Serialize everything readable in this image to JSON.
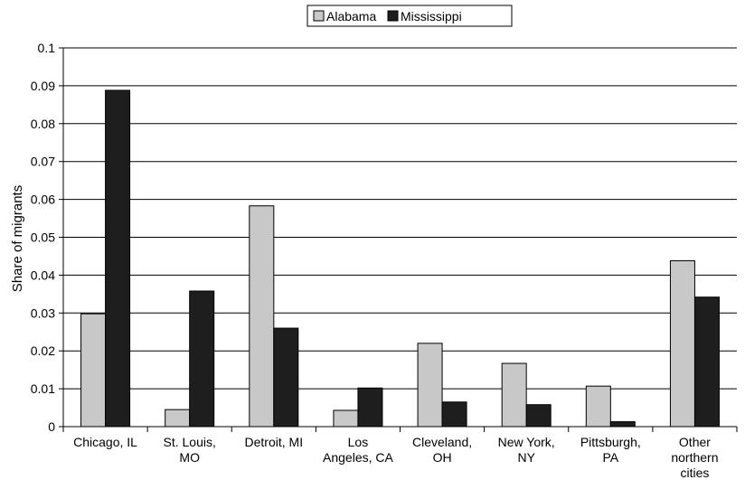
{
  "chart_data": {
    "type": "bar",
    "title": "",
    "xlabel": "",
    "ylabel": "Share of migrants",
    "ylim": [
      0,
      0.1
    ],
    "yticks": [
      "0",
      "0.01",
      "0.02",
      "0.03",
      "0.04",
      "0.05",
      "0.06",
      "0.07",
      "0.08",
      "0.09",
      "0.1"
    ],
    "grid": true,
    "legend_position": "top",
    "categories": [
      [
        "Chicago, IL"
      ],
      [
        "St. Louis,",
        "MO"
      ],
      [
        "Detroit, MI"
      ],
      [
        "Los",
        "Angeles, CA"
      ],
      [
        "Cleveland,",
        "OH"
      ],
      [
        "New York,",
        "NY"
      ],
      [
        "Pittsburgh,",
        "PA"
      ],
      [
        "Other",
        "northern",
        "cities"
      ]
    ],
    "series": [
      {
        "name": "Alabama",
        "color": "#c8c8c8",
        "values": [
          0.0298,
          0.0045,
          0.0583,
          0.0043,
          0.022,
          0.0167,
          0.0107,
          0.0438
        ]
      },
      {
        "name": "Mississippi",
        "color": "#1e1e1e",
        "values": [
          0.0888,
          0.0358,
          0.026,
          0.0102,
          0.0065,
          0.0058,
          0.0013,
          0.0342
        ]
      }
    ]
  }
}
